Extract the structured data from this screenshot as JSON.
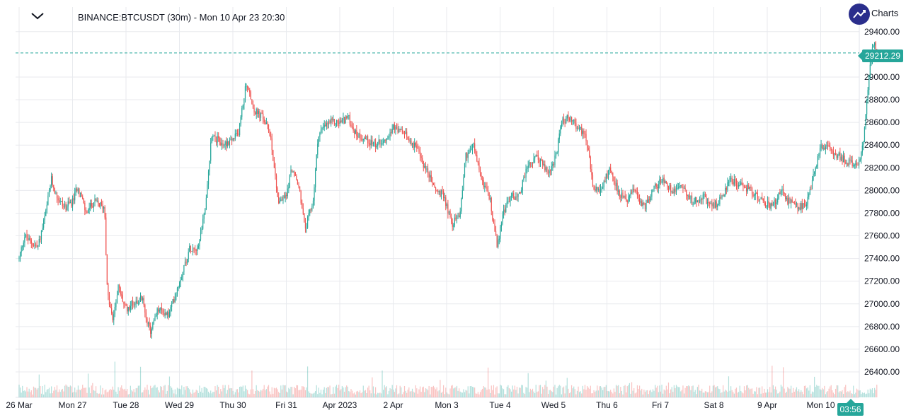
{
  "header": {
    "symbol_line": "BINANCE:BTCUSDT (30m) - Mon 10 Apr 23 20:30",
    "brand_label": "Charts"
  },
  "colors": {
    "up": "#26a69a",
    "down": "#ef5350",
    "grid": "#e8eaee",
    "badge": "#26a69a"
  },
  "chart_data": {
    "type": "candlestick",
    "title": "BINANCE:BTCUSDT (30m) - Mon 10 Apr 23 20:30",
    "ylim": [
      26200,
      29550
    ],
    "y_ticks": [
      26400,
      26600,
      26800,
      27000,
      27200,
      27400,
      27600,
      27800,
      28000,
      28200,
      28400,
      28600,
      28800,
      29000,
      29400
    ],
    "y_tick_labels": [
      "26400.00",
      "26600.00",
      "26800.00",
      "27000.00",
      "27200.00",
      "27400.00",
      "27600.00",
      "27800.00",
      "28000.00",
      "28200.00",
      "28400.00",
      "28600.00",
      "28800.00",
      "29000.00",
      "29400.00"
    ],
    "x_tick_labels": [
      "26 Mar",
      "Mon 27",
      "Tue 28",
      "Wed 29",
      "Thu 30",
      "Fri 31",
      "Apr 2023",
      "2 Apr",
      "Mon 3",
      "Tue 4",
      "Wed 5",
      "Thu 6",
      "Fri 7",
      "Sat 8",
      "9 Apr",
      "Mon 10"
    ],
    "x_tick_days": [
      0,
      1,
      2,
      3,
      4,
      5,
      6,
      7,
      8,
      9,
      10,
      11,
      12,
      13,
      14,
      15
    ],
    "last_price": 29212.29,
    "last_price_label": "29212.29",
    "countdown_label": "03:56",
    "grid": true,
    "close_path": [
      [
        0.0,
        27400
      ],
      [
        0.1,
        27600
      ],
      [
        0.2,
        27550
      ],
      [
        0.35,
        27500
      ],
      [
        0.5,
        27800
      ],
      [
        0.6,
        28100
      ],
      [
        0.7,
        27950
      ],
      [
        0.85,
        27850
      ],
      [
        1.0,
        27900
      ],
      [
        1.1,
        28050
      ],
      [
        1.25,
        27800
      ],
      [
        1.4,
        27900
      ],
      [
        1.6,
        27850
      ],
      [
        1.65,
        27100
      ],
      [
        1.75,
        26850
      ],
      [
        1.85,
        27150
      ],
      [
        2.0,
        26950
      ],
      [
        2.1,
        27000
      ],
      [
        2.3,
        27050
      ],
      [
        2.45,
        26750
      ],
      [
        2.6,
        26950
      ],
      [
        2.8,
        26900
      ],
      [
        3.0,
        27200
      ],
      [
        3.2,
        27500
      ],
      [
        3.35,
        27500
      ],
      [
        3.5,
        27900
      ],
      [
        3.6,
        28500
      ],
      [
        3.8,
        28400
      ],
      [
        4.0,
        28450
      ],
      [
        4.1,
        28500
      ],
      [
        4.25,
        28950
      ],
      [
        4.4,
        28700
      ],
      [
        4.55,
        28650
      ],
      [
        4.7,
        28500
      ],
      [
        4.85,
        27900
      ],
      [
        5.0,
        27950
      ],
      [
        5.1,
        28200
      ],
      [
        5.25,
        28000
      ],
      [
        5.35,
        27650
      ],
      [
        5.5,
        27900
      ],
      [
        5.6,
        28500
      ],
      [
        5.8,
        28600
      ],
      [
        6.0,
        28600
      ],
      [
        6.15,
        28650
      ],
      [
        6.3,
        28500
      ],
      [
        6.5,
        28450
      ],
      [
        6.7,
        28400
      ],
      [
        6.9,
        28500
      ],
      [
        7.0,
        28550
      ],
      [
        7.2,
        28500
      ],
      [
        7.4,
        28400
      ],
      [
        7.6,
        28200
      ],
      [
        7.8,
        28000
      ],
      [
        7.95,
        27950
      ],
      [
        8.1,
        27700
      ],
      [
        8.25,
        27800
      ],
      [
        8.35,
        28300
      ],
      [
        8.5,
        28400
      ],
      [
        8.65,
        28100
      ],
      [
        8.8,
        27950
      ],
      [
        8.95,
        27500
      ],
      [
        9.05,
        27800
      ],
      [
        9.2,
        27950
      ],
      [
        9.35,
        27950
      ],
      [
        9.5,
        28200
      ],
      [
        9.7,
        28300
      ],
      [
        9.9,
        28150
      ],
      [
        10.05,
        28300
      ],
      [
        10.15,
        28600
      ],
      [
        10.3,
        28650
      ],
      [
        10.45,
        28550
      ],
      [
        10.6,
        28500
      ],
      [
        10.75,
        28000
      ],
      [
        10.9,
        28000
      ],
      [
        11.05,
        28200
      ],
      [
        11.2,
        28000
      ],
      [
        11.35,
        27900
      ],
      [
        11.5,
        28000
      ],
      [
        11.7,
        27850
      ],
      [
        11.85,
        28000
      ],
      [
        12.05,
        28100
      ],
      [
        12.2,
        28000
      ],
      [
        12.4,
        28050
      ],
      [
        12.6,
        27900
      ],
      [
        12.8,
        27950
      ],
      [
        12.95,
        27850
      ],
      [
        13.1,
        27900
      ],
      [
        13.3,
        28100
      ],
      [
        13.5,
        28050
      ],
      [
        13.7,
        28000
      ],
      [
        13.9,
        27900
      ],
      [
        14.1,
        27850
      ],
      [
        14.25,
        28000
      ],
      [
        14.4,
        27900
      ],
      [
        14.6,
        27850
      ],
      [
        14.75,
        27900
      ],
      [
        14.9,
        28200
      ],
      [
        15.0,
        28400
      ],
      [
        15.2,
        28350
      ],
      [
        15.35,
        28300
      ],
      [
        15.5,
        28250
      ],
      [
        15.6,
        28250
      ],
      [
        15.7,
        28200
      ],
      [
        15.8,
        28450
      ],
      [
        15.9,
        29000
      ],
      [
        16.0,
        29350
      ],
      [
        16.05,
        29212.29
      ]
    ]
  }
}
